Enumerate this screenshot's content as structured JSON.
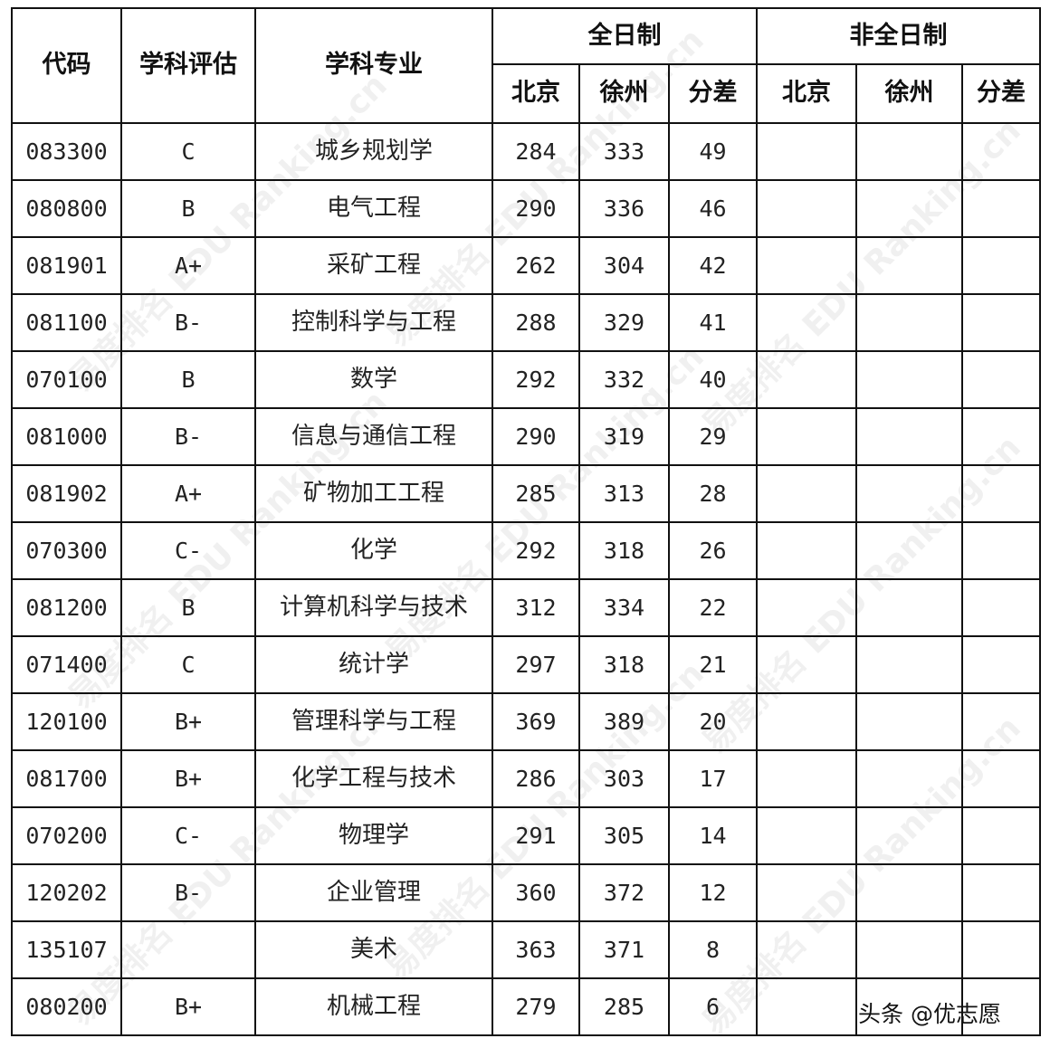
{
  "watermark": "易度排名 EDU Ranking.cn",
  "header": {
    "code": "代码",
    "evaluation": "学科评估",
    "major": "学科专业",
    "fulltime": "全日制",
    "parttime": "非全日制",
    "beijing": "北京",
    "xuzhou": "徐州",
    "diff": "分差"
  },
  "rows": [
    {
      "code": "083300",
      "eval": "C",
      "major": "城乡规划学",
      "bj": "284",
      "xz": "333",
      "diff": "49"
    },
    {
      "code": "080800",
      "eval": "B",
      "major": "电气工程",
      "bj": "290",
      "xz": "336",
      "diff": "46"
    },
    {
      "code": "081901",
      "eval": "A+",
      "major": "采矿工程",
      "bj": "262",
      "xz": "304",
      "diff": "42"
    },
    {
      "code": "081100",
      "eval": "B-",
      "major": "控制科学与工程",
      "bj": "288",
      "xz": "329",
      "diff": "41"
    },
    {
      "code": "070100",
      "eval": "B",
      "major": "数学",
      "bj": "292",
      "xz": "332",
      "diff": "40"
    },
    {
      "code": "081000",
      "eval": "B-",
      "major": "信息与通信工程",
      "bj": "290",
      "xz": "319",
      "diff": "29"
    },
    {
      "code": "081902",
      "eval": "A+",
      "major": "矿物加工工程",
      "bj": "285",
      "xz": "313",
      "diff": "28"
    },
    {
      "code": "070300",
      "eval": "C-",
      "major": "化学",
      "bj": "292",
      "xz": "318",
      "diff": "26"
    },
    {
      "code": "081200",
      "eval": "B",
      "major": "计算机科学与技术",
      "bj": "312",
      "xz": "334",
      "diff": "22"
    },
    {
      "code": "071400",
      "eval": "C",
      "major": "统计学",
      "bj": "297",
      "xz": "318",
      "diff": "21"
    },
    {
      "code": "120100",
      "eval": "B+",
      "major": "管理科学与工程",
      "bj": "369",
      "xz": "389",
      "diff": "20"
    },
    {
      "code": "081700",
      "eval": "B+",
      "major": "化学工程与技术",
      "bj": "286",
      "xz": "303",
      "diff": "17"
    },
    {
      "code": "070200",
      "eval": "C-",
      "major": "物理学",
      "bj": "291",
      "xz": "305",
      "diff": "14"
    },
    {
      "code": "120202",
      "eval": "B-",
      "major": "企业管理",
      "bj": "360",
      "xz": "372",
      "diff": "12"
    },
    {
      "code": "135107",
      "eval": "",
      "major": "美术",
      "bj": "363",
      "xz": "371",
      "diff": "8"
    },
    {
      "code": "080200",
      "eval": "B+",
      "major": "机械工程",
      "bj": "279",
      "xz": "285",
      "diff": "6"
    }
  ],
  "credit": "头条 @优志愿"
}
